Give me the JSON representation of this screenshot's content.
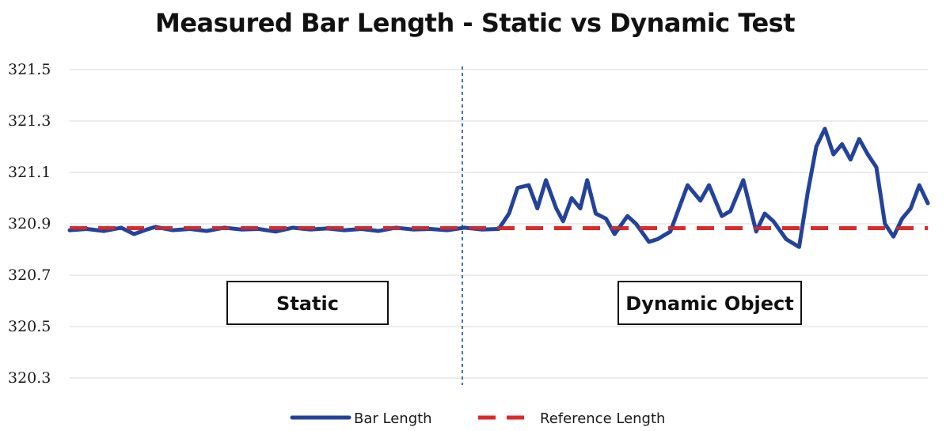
{
  "chart_data": {
    "type": "line",
    "title": "Measured Bar Length - Static vs Dynamic Test",
    "xlabel": "",
    "ylabel": "",
    "ylim": [
      320.3,
      321.5
    ],
    "yticks": [
      "320.3",
      "320.5",
      "320.7",
      "320.9",
      "321.1",
      "321.3",
      "321.5"
    ],
    "grid": true,
    "legend_position": "bottom",
    "split_fraction": 0.5,
    "regions": [
      "Static",
      "Dynamic Object"
    ],
    "series": [
      {
        "name": "Bar Length",
        "color": "#23439a",
        "style": "solid",
        "x": [
          0,
          0.02,
          0.04,
          0.06,
          0.075,
          0.09,
          0.1,
          0.12,
          0.14,
          0.16,
          0.18,
          0.2,
          0.22,
          0.24,
          0.26,
          0.28,
          0.3,
          0.32,
          0.34,
          0.36,
          0.38,
          0.4,
          0.42,
          0.44,
          0.46,
          0.48,
          0.5,
          0.512,
          0.522,
          0.535,
          0.545,
          0.555,
          0.567,
          0.575,
          0.585,
          0.595,
          0.603,
          0.613,
          0.625,
          0.635,
          0.65,
          0.66,
          0.675,
          0.685,
          0.7,
          0.71,
          0.72,
          0.735,
          0.745,
          0.76,
          0.77,
          0.785,
          0.8,
          0.81,
          0.82,
          0.835,
          0.85,
          0.86,
          0.87,
          0.88,
          0.89,
          0.9,
          0.91,
          0.92,
          0.93,
          0.94,
          0.95,
          0.96,
          0.97,
          0.98,
          0.99,
          1.0
        ],
        "values": [
          320.875,
          320.88,
          320.872,
          320.885,
          320.86,
          320.878,
          320.888,
          320.875,
          320.88,
          320.872,
          320.885,
          320.878,
          320.88,
          320.87,
          320.885,
          320.878,
          320.882,
          320.875,
          320.88,
          320.872,
          320.885,
          320.878,
          320.88,
          320.875,
          320.885,
          320.878,
          320.88,
          320.94,
          321.04,
          321.05,
          320.96,
          321.07,
          320.96,
          320.91,
          321.0,
          320.96,
          321.07,
          320.94,
          320.92,
          320.86,
          320.93,
          320.9,
          320.83,
          320.84,
          320.87,
          320.96,
          321.05,
          320.99,
          321.05,
          320.93,
          320.95,
          321.07,
          320.87,
          320.94,
          320.91,
          320.84,
          320.81,
          321.02,
          321.2,
          321.27,
          321.17,
          321.21,
          321.15,
          321.23,
          321.17,
          321.12,
          320.9,
          320.85,
          320.92,
          320.96,
          321.05,
          320.98
        ]
      },
      {
        "name": "Reference Length",
        "color": "#d92b2b",
        "style": "dashed",
        "x": [
          0,
          1
        ],
        "values": [
          320.883,
          320.883
        ]
      }
    ]
  }
}
